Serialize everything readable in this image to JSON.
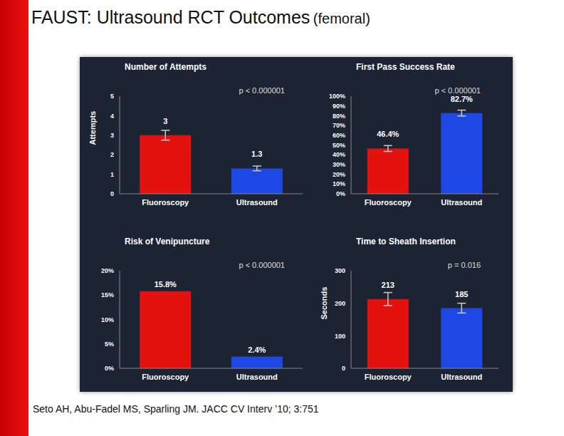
{
  "title": "FAUST: Ultrasound RCT Outcomes",
  "subtitle": "(femoral)",
  "citation": "Seto AH, Abu-Fadel MS, Sparling JM.  JACC CV Interv ’10; 3:751",
  "chart_data": [
    {
      "type": "bar",
      "title": "Number of Attempts",
      "annotation": "p < 0.000001",
      "y_label": "Attempts",
      "categories": [
        "Fluoroscopy",
        "Ultrasound"
      ],
      "values": [
        3,
        1.3
      ],
      "errors": [
        0.25,
        0.12
      ],
      "colors": [
        "#e3120e",
        "#1d48e6"
      ],
      "ylim": [
        0,
        5
      ],
      "yticks": [
        0,
        1,
        2,
        3,
        4,
        5
      ],
      "data_labels": true,
      "grid": false
    },
    {
      "type": "bar",
      "title": "First Pass Success Rate",
      "annotation": "p < 0.000001",
      "categories": [
        "Fluoroscopy",
        "Ultrasound"
      ],
      "values": [
        46.4,
        82.7
      ],
      "value_labels": [
        "46.4%",
        "82.7%"
      ],
      "errors": [
        3,
        3
      ],
      "colors": [
        "#e3120e",
        "#1d48e6"
      ],
      "ylim": [
        0,
        100
      ],
      "yticks": [
        {
          "value": 0,
          "label": "0%"
        },
        {
          "value": 10,
          "label": "10%"
        },
        {
          "value": 20,
          "label": "20%"
        },
        {
          "value": 30,
          "label": "30%"
        },
        {
          "value": 40,
          "label": "40%"
        },
        {
          "value": 50,
          "label": "50%"
        },
        {
          "value": 60,
          "label": "60%"
        },
        {
          "value": 70,
          "label": "70%"
        },
        {
          "value": 80,
          "label": "80%"
        },
        {
          "value": 90,
          "label": "90%"
        },
        {
          "value": 100,
          "label": "100%"
        }
      ],
      "data_labels": true,
      "grid": false
    },
    {
      "type": "bar",
      "title": "Risk of Venipuncture",
      "annotation": "p < 0.000001",
      "categories": [
        "Fluoroscopy",
        "Ultrasound"
      ],
      "values": [
        15.8,
        2.4
      ],
      "value_labels": [
        "15.8%",
        "2.4%"
      ],
      "colors": [
        "#e3120e",
        "#1d48e6"
      ],
      "ylim": [
        0,
        20
      ],
      "yticks": [
        {
          "value": 0,
          "label": "0%"
        },
        {
          "value": 5,
          "label": "5%"
        },
        {
          "value": 10,
          "label": "10%"
        },
        {
          "value": 15,
          "label": "15%"
        },
        {
          "value": 20,
          "label": "20%"
        }
      ],
      "data_labels": true,
      "grid": false
    },
    {
      "type": "bar",
      "title": "Time to Sheath Insertion",
      "annotation": "p = 0.016",
      "y_label": "Seconds",
      "categories": [
        "Fluoroscopy",
        "Ultrasound"
      ],
      "values": [
        213,
        185
      ],
      "errors": [
        20,
        15
      ],
      "colors": [
        "#e3120e",
        "#1d48e6"
      ],
      "ylim": [
        0,
        300
      ],
      "yticks": [
        0,
        100,
        200,
        300
      ],
      "data_labels": true,
      "grid": false
    }
  ]
}
